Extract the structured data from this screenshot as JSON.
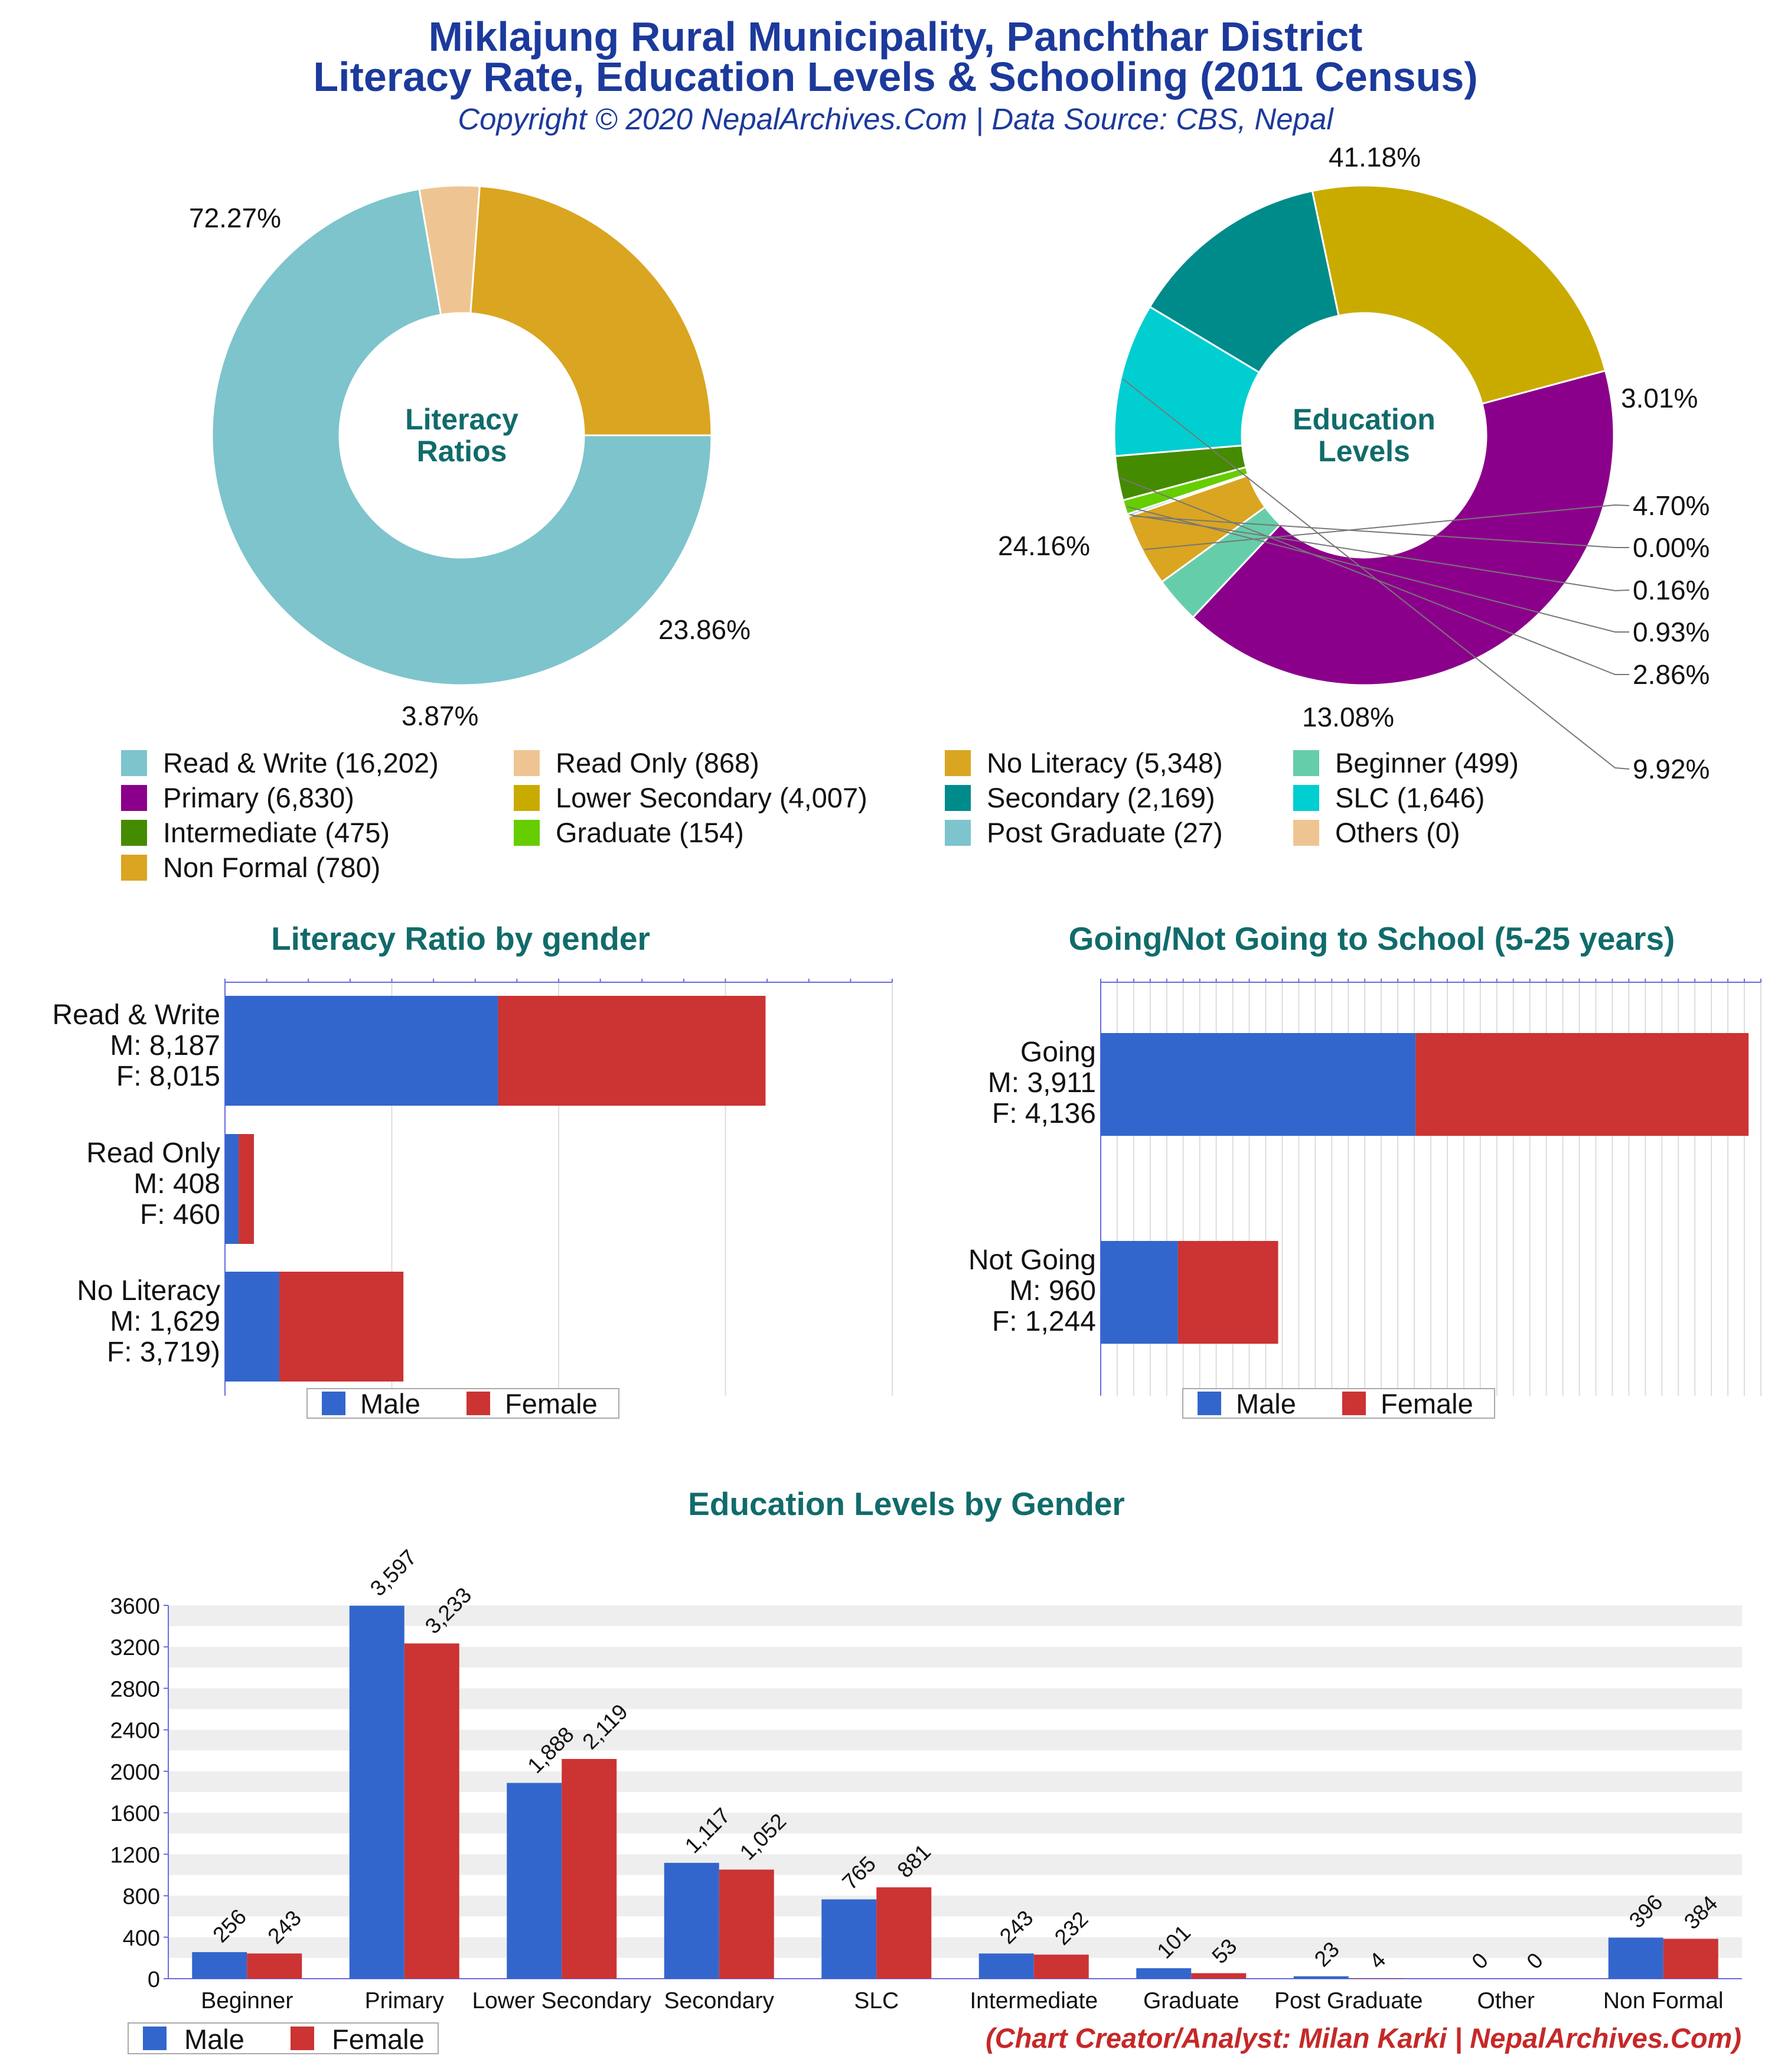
{
  "header": {
    "title_line1": "Miklajung Rural Municipality, Panchthar District",
    "title_line2": "Literacy Rate, Education Levels & Schooling (2011 Census)",
    "copyright": "Copyright © 2020 NepalArchives.Com | Data Source: CBS, Nepal"
  },
  "footer": {
    "credit": "(Chart Creator/Analyst: Milan Karki | NepalArchives.Com)"
  },
  "colors": {
    "male": "#3366cc",
    "female": "#cc3333",
    "title_teal": "#116b6b",
    "header_blue": "#1c3a9c",
    "footer_red": "#c62828"
  },
  "legend": {
    "male": "Male",
    "female": "Female",
    "items": [
      {
        "label": "Read & Write (16,202)",
        "color": "#7ec4cc"
      },
      {
        "label": "Read Only (868)",
        "color": "#eec592"
      },
      {
        "label": "No Literacy (5,348)",
        "color": "#daa521"
      },
      {
        "label": "Beginner (499)",
        "color": "#66cdaa"
      },
      {
        "label": "Primary (6,830)",
        "color": "#8b008b"
      },
      {
        "label": "Lower Secondary (4,007)",
        "color": "#c9ab00"
      },
      {
        "label": "Secondary (2,169)",
        "color": "#008b8b"
      },
      {
        "label": "SLC (1,646)",
        "color": "#00ced1"
      },
      {
        "label": "Intermediate (475)",
        "color": "#458b00"
      },
      {
        "label": "Graduate (154)",
        "color": "#66cd00"
      },
      {
        "label": "Post Graduate (27)",
        "color": "#7ec4cc"
      },
      {
        "label": "Others (0)",
        "color": "#eec592"
      },
      {
        "label": "Non Formal (780)",
        "color": "#daa521"
      }
    ]
  },
  "chart_data": [
    {
      "type": "pie",
      "center_label": [
        "Literacy",
        "Ratios"
      ],
      "slices": [
        {
          "name": "Read & Write",
          "value": 16202,
          "percent_label": "72.27%",
          "color": "#7ec4cc"
        },
        {
          "name": "Read Only",
          "value": 868,
          "percent_label": "3.87%",
          "color": "#eec592"
        },
        {
          "name": "No Literacy",
          "value": 5348,
          "percent_label": "23.86%",
          "color": "#daa521"
        }
      ]
    },
    {
      "type": "pie",
      "center_label": [
        "Education",
        "Levels"
      ],
      "slices": [
        {
          "name": "Primary",
          "value": 6830,
          "percent_label": "41.18%",
          "color": "#8b008b"
        },
        {
          "name": "Beginner",
          "value": 499,
          "percent_label": "3.01%",
          "color": "#66cdaa"
        },
        {
          "name": "Non Formal",
          "value": 780,
          "percent_label": "4.70%",
          "color": "#daa521"
        },
        {
          "name": "Others",
          "value": 0,
          "percent_label": "0.00%",
          "color": "#eec592"
        },
        {
          "name": "Post Graduate",
          "value": 27,
          "percent_label": "0.16%",
          "color": "#7ec4cc"
        },
        {
          "name": "Graduate",
          "value": 154,
          "percent_label": "0.93%",
          "color": "#66cd00"
        },
        {
          "name": "Intermediate",
          "value": 475,
          "percent_label": "2.86%",
          "color": "#458b00"
        },
        {
          "name": "SLC",
          "value": 1646,
          "percent_label": "9.92%",
          "color": "#00ced1"
        },
        {
          "name": "Secondary",
          "value": 2169,
          "percent_label": "13.08%",
          "color": "#008b8b"
        },
        {
          "name": "Lower Secondary",
          "value": 4007,
          "percent_label": "24.16%",
          "color": "#c9ab00"
        }
      ]
    },
    {
      "type": "bar",
      "orientation": "horizontal",
      "stacked": true,
      "title": "Literacy Ratio by gender",
      "xlim": [
        0,
        20000
      ],
      "categories": [
        [
          "Read & Write",
          "M: 8,187",
          "F: 8,015"
        ],
        [
          "Read Only",
          "M: 408",
          "F: 460"
        ],
        [
          "No Literacy",
          "M: 1,629",
          "F: 3,719)"
        ]
      ],
      "series": [
        {
          "name": "Male",
          "values": [
            8187,
            408,
            1629
          ]
        },
        {
          "name": "Female",
          "values": [
            8015,
            460,
            3719
          ]
        }
      ]
    },
    {
      "type": "bar",
      "orientation": "horizontal",
      "stacked": true,
      "title": "Going/Not Going to School (5-25 years)",
      "xlim": [
        0,
        8200
      ],
      "categories": [
        [
          "Going",
          "M: 3,911",
          "F: 4,136"
        ],
        [
          "Not Going",
          "M: 960",
          "F: 1,244"
        ]
      ],
      "series": [
        {
          "name": "Male",
          "values": [
            3911,
            960
          ]
        },
        {
          "name": "Female",
          "values": [
            4136,
            1244
          ]
        }
      ]
    },
    {
      "type": "bar",
      "orientation": "vertical",
      "title": "Education Levels by Gender",
      "ylim": [
        0,
        3600
      ],
      "yticks": [
        "0",
        "400",
        "800",
        "1200",
        "1600",
        "2000",
        "2400",
        "2800",
        "3200",
        "3600"
      ],
      "categories": [
        "Beginner",
        "Primary",
        "Lower Secondary",
        "Secondary",
        "SLC",
        "Intermediate",
        "Graduate",
        "Post Graduate",
        "Other",
        "Non Formal"
      ],
      "series": [
        {
          "name": "Male",
          "values": [
            256,
            3597,
            1888,
            1117,
            765,
            243,
            101,
            23,
            0,
            396
          ],
          "value_labels": [
            "256",
            "3,597",
            "1,888",
            "1,117",
            "765",
            "243",
            "101",
            "23",
            "0",
            "396"
          ]
        },
        {
          "name": "Female",
          "values": [
            243,
            3233,
            2119,
            1052,
            881,
            232,
            53,
            4,
            0,
            384
          ],
          "value_labels": [
            "243",
            "3,233",
            "2,119",
            "1,052",
            "881",
            "232",
            "53",
            "4",
            "0",
            "384"
          ]
        }
      ]
    }
  ]
}
